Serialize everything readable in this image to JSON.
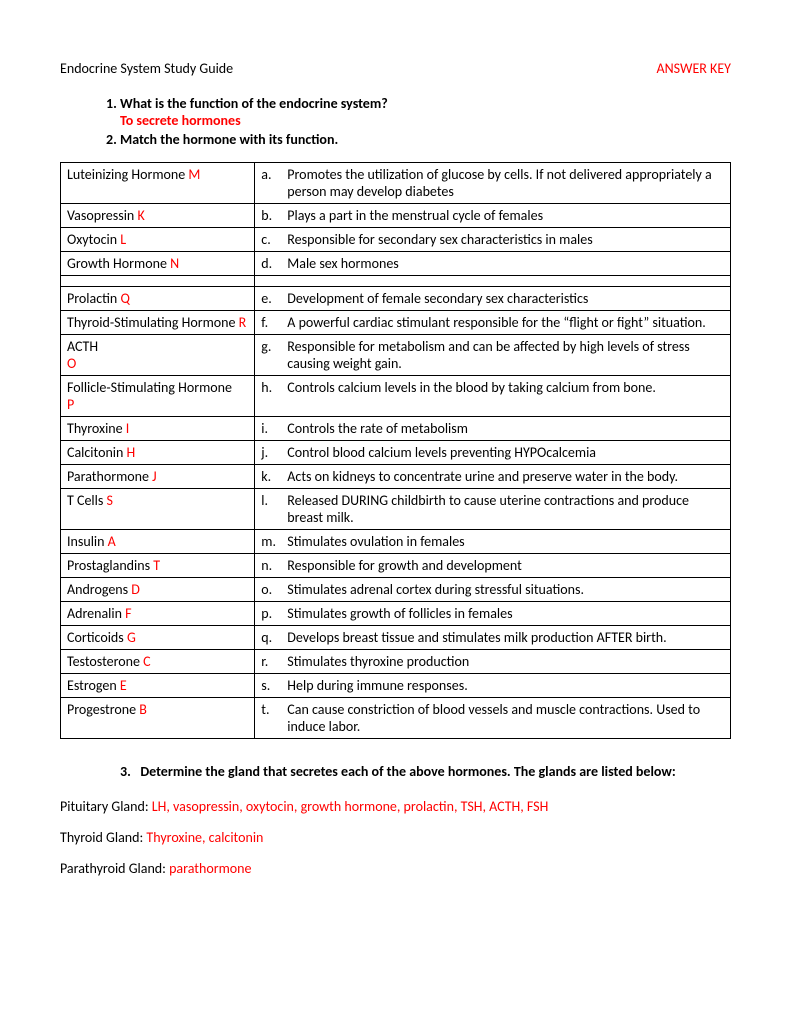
{
  "header": {
    "title": "Endocrine System Study Guide",
    "answer_key": "ANSWER KEY"
  },
  "q1": {
    "num": "1.",
    "text": "What is the function of the endocrine system?",
    "answer": "To secrete hormones"
  },
  "q2": {
    "num": "2.",
    "text": "Match the hormone with its function."
  },
  "rows": [
    {
      "hormone": "Luteinizing Hormone ",
      "ans": "M",
      "letter": "a.",
      "def": "Promotes the utilization of glucose by cells.  If not delivered appropriately a person may develop diabetes"
    },
    {
      "hormone": "Vasopressin ",
      "ans": "K",
      "letter": "b.",
      "def": "Plays a part in the menstrual cycle of females"
    },
    {
      "hormone": "Oxytocin ",
      "ans": "L",
      "letter": "c.",
      "def": "Responsible for secondary sex characteristics in males"
    },
    {
      "hormone": "Growth Hormone ",
      "ans": "N",
      "letter": "d.",
      "def": "Male sex hormones"
    },
    {
      "gap": true
    },
    {
      "hormone": "Prolactin ",
      "ans": "Q",
      "letter": "e.",
      "def": "Development of female secondary sex characteristics"
    },
    {
      "hormone": "Thyroid-Stimulating Hormone ",
      "ans": "R",
      "letter": "f.",
      "def": "A powerful cardiac stimulant responsible for the “flight or fight” situation."
    },
    {
      "hormone": "ACTH",
      "ans": "O",
      "ansNewline": true,
      "letter": "g.",
      "def": "Responsible for metabolism and can be affected by high levels of stress causing weight gain."
    },
    {
      "hormone": "Follicle-Stimulating Hormone ",
      "ans": "P",
      "ansNewline": true,
      "letter": "h.",
      "def": "Controls calcium levels in the blood by taking calcium from bone."
    },
    {
      "hormone": "Thyroxine ",
      "ans": "I",
      "letter": "i.",
      "def": "Controls the rate of metabolism"
    },
    {
      "hormone": "Calcitonin ",
      "ans": "H",
      "letter": "j.",
      "def": "Control blood calcium levels preventing HYPOcalcemia"
    },
    {
      "hormone": "Parathormone ",
      "ans": "J",
      "letter": "k.",
      "def": "Acts on kidneys to concentrate urine and preserve water in the body."
    },
    {
      "hormone": "T Cells ",
      "ans": "S",
      "letter": "l.",
      "def": "Released DURING childbirth to cause uterine contractions and produce breast milk."
    },
    {
      "hormone": "Insulin ",
      "ans": "A",
      "letter": "m.",
      "def": "Stimulates ovulation in females"
    },
    {
      "hormone": "Prostaglandins ",
      "ans": "T",
      "letter": "n.",
      "def": "Responsible for growth and development"
    },
    {
      "hormone": "Androgens ",
      "ans": "D",
      "letter": "o.",
      "def": "Stimulates adrenal cortex during stressful situations."
    },
    {
      "hormone": "Adrenalin ",
      "ans": "F",
      "letter": "p.",
      "def": "Stimulates growth of follicles in females"
    },
    {
      "hormone": "Corticoids ",
      "ans": "G",
      "letter": "q.",
      "def": "Develops breast tissue and stimulates milk production AFTER birth."
    },
    {
      "hormone": "Testosterone ",
      "ans": "C",
      "letter": "r.",
      "def": "Stimulates thyroxine production"
    },
    {
      "hormone": "Estrogen ",
      "ans": "E",
      "letter": "s.",
      "def": "Help during immune responses."
    },
    {
      "hormone": "Progestrone ",
      "ans": "B",
      "letter": "t.",
      "def": "Can cause constriction of blood vessels and muscle contractions. Used to induce labor."
    }
  ],
  "q3": {
    "num": "3.",
    "text": "Determine the gland that secretes each of the above hormones.  The glands are listed below:"
  },
  "glands": [
    {
      "label": "Pituitary Gland: ",
      "answer": "LH, vasopressin, oxytocin, growth hormone, prolactin, TSH, ACTH, FSH"
    },
    {
      "label": "Thyroid Gland: ",
      "answer": "Thyroxine, calcitonin"
    },
    {
      "label": "Parathyroid Gland: ",
      "answer": "parathormone"
    }
  ]
}
